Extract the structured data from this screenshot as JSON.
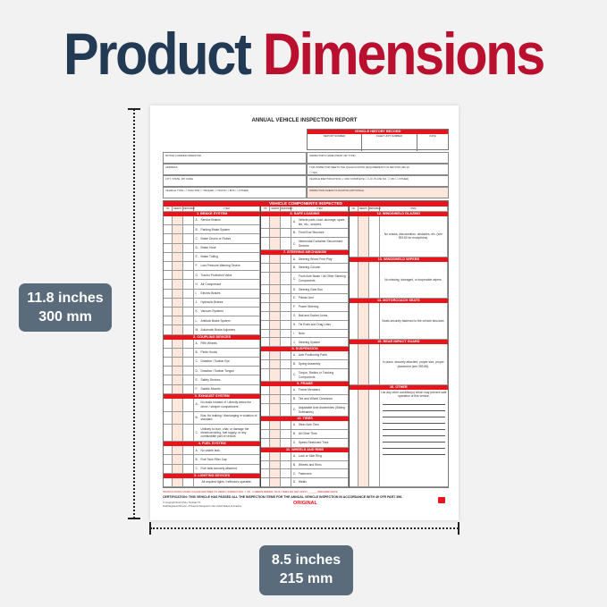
{
  "heading": {
    "word1": "Product",
    "word2": "Dimensions",
    "color1": "#223a54",
    "color2": "#b8102e"
  },
  "dimensions": {
    "height_in": "11.8 inches",
    "height_mm": "300 mm",
    "width_in": "8.5 inches",
    "width_mm": "215 mm"
  },
  "form": {
    "title": "ANNUAL VEHICLE INSPECTION REPORT",
    "history": {
      "title": "VEHICLE HISTORY RECORD",
      "cols": [
        "REPORT NUMBER",
        "FLEET UNIT NUMBER",
        "DATE"
      ]
    },
    "info": {
      "carrier": "MOTOR CARRIER OPERATOR",
      "inspector": "INSPECTOR'S NAME (PRINT OR TYPE)",
      "address": "ADDRESS",
      "qualification": "THIS INSPECTOR MEETS THE QUALIFICATION REQUIREMENTS IN SECTION 396.19.",
      "yes": "☐ YES",
      "city": "CITY, STATE, ZIP CODE",
      "vehicle_id": "VEHICLE IDENTIFICATION (✓ AND COMPLETE)   ☐ LIC. PLATE NO.   ☐ VIN   ☐ (OTHER)",
      "vehicle_type": "VEHICLE TYPE:   ☐ TRACTOR   ☐ TRAILER   ☐ TRUCK   ☐ BUS   ☐ (OTHER)",
      "agency": "INSPECTION AGENCY/LOCATION (OPTIONAL)"
    },
    "components_title": "VEHICLE COMPONENTS INSPECTED",
    "col_headers": [
      "OK",
      "NEEDS REPAIR",
      "REPAIRED DATE",
      "ITEM"
    ],
    "accent": "#e8141c",
    "columns": [
      [
        {
          "title": "1. BRAKE SYSTEM",
          "items": [
            [
              "A.",
              "Service Brakes"
            ],
            [
              "B.",
              "Parking Brake System"
            ],
            [
              "C.",
              "Brake Drums or Rotors"
            ],
            [
              "D.",
              "Brake Hose"
            ],
            [
              "E.",
              "Brake Tubing"
            ],
            [
              "F.",
              "Low Pressure Warning Device"
            ],
            [
              "G.",
              "Tractor Protection Valve"
            ],
            [
              "H.",
              "Air Compressor"
            ],
            [
              "I.",
              "Electric Brakes"
            ],
            [
              "J.",
              "Hydraulic Brakes"
            ],
            [
              "K.",
              "Vacuum Systems"
            ],
            [
              "L.",
              "Antilock Brake System"
            ],
            [
              "M.",
              "Automatic Brake Adjusters"
            ]
          ]
        },
        {
          "title": "2. COUPLING DEVICES",
          "items": [
            [
              "A.",
              "Fifth Wheels"
            ],
            [
              "B.",
              "Pintle Hooks"
            ],
            [
              "C.",
              "Drawbar / Towbar Eye"
            ],
            [
              "D.",
              "Drawbar / Towbar Tongue"
            ],
            [
              "E.",
              "Safety Devices"
            ],
            [
              "F.",
              "Saddle-Mounts"
            ]
          ]
        },
        {
          "title": "3. EXHAUST SYSTEM",
          "items": [
            [
              "A.",
              "No leaks forward of / directly below the driver / sleeper compartment."
            ],
            [
              "B.",
              "Bus: No leaking / discharging in violation of standard."
            ],
            [
              "C.",
              "Unlikely to burn, char, or damage the electrical wiring, fuel supply, or any combustible part of vehicle."
            ]
          ]
        },
        {
          "title": "4. FUEL SYSTEM",
          "items": [
            [
              "A.",
              "No visible leak."
            ],
            [
              "B.",
              "Fuel Tank Filler Cap"
            ],
            [
              "C.",
              "Fuel tank securely attached."
            ]
          ]
        },
        {
          "title": "5. LIGHTING DEVICES",
          "items": [
            [
              "",
              "All required lights / reflectors operable."
            ]
          ]
        }
      ],
      [
        {
          "title": "6. SAFE LOADING",
          "items": [
            [
              "A.",
              "Vehicle parts, load, dunnage, spare tire, etc., secured."
            ],
            [
              "B.",
              "Front End Structure"
            ],
            [
              "C.",
              "Intermodal Container Securement Devices"
            ]
          ]
        },
        {
          "title": "7. STEERING MECHANISM",
          "items": [
            [
              "A.",
              "Steering Wheel Free Play"
            ],
            [
              "B.",
              "Steering Column"
            ],
            [
              "C.",
              "Front Axle Beam / All Other Steering Components"
            ],
            [
              "D.",
              "Steering Gear Box"
            ],
            [
              "E.",
              "Pitman Arm"
            ],
            [
              "F.",
              "Power Steering"
            ],
            [
              "G.",
              "Ball and Socket Joints"
            ],
            [
              "H.",
              "Tie Rods and Drag Links"
            ],
            [
              "I.",
              "Nuts"
            ],
            [
              "J.",
              "Steering System"
            ]
          ]
        },
        {
          "title": "8. SUSPENSION",
          "items": [
            [
              "A.",
              "Axle Positioning Parts"
            ],
            [
              "B.",
              "Spring Assembly"
            ],
            [
              "C.",
              "Torque, Radius or Tracking Components"
            ]
          ]
        },
        {
          "title": "9. FRAME",
          "items": [
            [
              "A.",
              "Frame Members"
            ],
            [
              "B.",
              "Tire and Wheel Clearance"
            ],
            [
              "C.",
              "Adjustable Axle Assemblies (Sliding Subframes)"
            ]
          ]
        },
        {
          "title": "10. TIRES",
          "items": [
            [
              "A.",
              "Steer Axle Tires"
            ],
            [
              "B.",
              "All Other Tires"
            ],
            [
              "C.",
              "Speed-Restricted Tires"
            ]
          ]
        },
        {
          "title": "11. WHEELS AND RIMS",
          "items": [
            [
              "A.",
              "Lock or Side Ring"
            ],
            [
              "B.",
              "Wheels and Rims"
            ],
            [
              "C.",
              "Fasteners"
            ],
            [
              "D.",
              "Welds"
            ]
          ]
        }
      ],
      [
        {
          "title": "12. WINDSHIELD GLAZING",
          "items": [
            [
              "",
              "No cracks, discoloration, obstacles, etc. (see 393.60 for exceptions)."
            ]
          ]
        },
        {
          "title": "13. WINDSHIELD WIPERS",
          "items": [
            [
              "",
              "No missing, damaged, or inoperable wipers."
            ]
          ]
        },
        {
          "title": "14. MOTORCOACH SEATS",
          "items": [
            [
              "",
              "Seats securely fastened to the vehicle structure."
            ]
          ]
        },
        {
          "title": "15. REAR IMPACT GUARD",
          "items": [
            [
              "",
              "In place, securely attached, proper size, proper placement (see 393.86)."
            ]
          ]
        },
        {
          "title": "16. OTHER",
          "items": [
            [
              "",
              "List any other condition(s) which may prevent safe operation of this vehicle."
            ]
          ],
          "lines": true
        }
      ]
    ],
    "instructions": "INSTRUCTIONS: MARK COLUMN ENTRIES TO VERIFY INSPECTION:  ✓  OK,   X  NEEDS REPAIR,   NA  IF ITEMS DO NOT APPLY,  ______  REPAIRED DATE",
    "certification": "CERTIFICATION: THIS VEHICLE HAS PASSED ALL THE INSPECTION ITEMS FOR THE ANNUAL VEHICLE INSPECTION IN ACCORDANCE WITH 49 CFR PART 396.",
    "copyright1": "© Copyright Rush USA • Tomball, TX",
    "copyright2": "RushSuppliesUSA.com • Printed & Designed in the United States of America",
    "copy_label": "ORIGINAL"
  }
}
